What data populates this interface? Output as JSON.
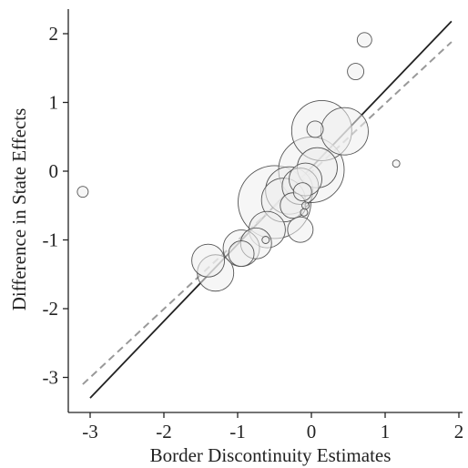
{
  "chart_data": {
    "type": "scatter",
    "title": "",
    "xlabel": "Border Discontinuity Estimates",
    "ylabel": "Difference in State Effects",
    "xlim": [
      -3.3,
      2.1
    ],
    "ylim": [
      -3.5,
      2.4
    ],
    "x_ticks": [
      -3,
      -2,
      -1,
      0,
      1,
      2
    ],
    "y_ticks": [
      -3,
      -2,
      -1,
      0,
      1,
      2
    ],
    "x_tick_labels": [
      "-3",
      "-2",
      "-1",
      "0",
      "1",
      "2"
    ],
    "y_tick_labels": [
      "-3",
      "-2",
      "-1",
      "0",
      "1",
      "2"
    ],
    "grid": false,
    "marker_style": "hollow bubbles sized by weight",
    "points": [
      {
        "x": -3.1,
        "y": -0.3,
        "size": 6
      },
      {
        "x": 0.72,
        "y": 1.91,
        "size": 8
      },
      {
        "x": 0.6,
        "y": 1.45,
        "size": 9
      },
      {
        "x": 1.15,
        "y": 0.11,
        "size": 4
      },
      {
        "x": 0.14,
        "y": 0.59,
        "size": 33
      },
      {
        "x": 0.45,
        "y": 0.58,
        "size": 26
      },
      {
        "x": 0.05,
        "y": 0.61,
        "size": 9
      },
      {
        "x": 0.0,
        "y": 0.02,
        "size": 36
      },
      {
        "x": 0.08,
        "y": 0.05,
        "size": 22
      },
      {
        "x": -0.08,
        "y": -0.12,
        "size": 18
      },
      {
        "x": -0.15,
        "y": -0.22,
        "size": 20
      },
      {
        "x": -0.3,
        "y": -0.28,
        "size": 26
      },
      {
        "x": -0.5,
        "y": -0.45,
        "size": 40
      },
      {
        "x": -0.38,
        "y": -0.42,
        "size": 24
      },
      {
        "x": -0.25,
        "y": -0.5,
        "size": 14
      },
      {
        "x": -0.12,
        "y": -0.3,
        "size": 10
      },
      {
        "x": -0.08,
        "y": -0.5,
        "size": 4
      },
      {
        "x": -0.1,
        "y": -0.6,
        "size": 4
      },
      {
        "x": -0.15,
        "y": -0.85,
        "size": 14
      },
      {
        "x": -0.6,
        "y": -0.85,
        "size": 20
      },
      {
        "x": -0.62,
        "y": -1.0,
        "size": 4
      },
      {
        "x": -0.75,
        "y": -1.05,
        "size": 17
      },
      {
        "x": -0.95,
        "y": -1.12,
        "size": 20
      },
      {
        "x": -0.95,
        "y": -1.2,
        "size": 14
      },
      {
        "x": -1.4,
        "y": -1.3,
        "size": 18
      },
      {
        "x": -1.3,
        "y": -1.48,
        "size": 20
      }
    ],
    "lines": [
      {
        "style": "solid",
        "color": "#222222",
        "x": [
          -3.0,
          1.9
        ],
        "y": [
          -3.3,
          2.18
        ]
      },
      {
        "style": "dashed",
        "color": "#999999",
        "x": [
          -3.1,
          1.9
        ],
        "y": [
          -3.1,
          1.88
        ]
      }
    ]
  }
}
